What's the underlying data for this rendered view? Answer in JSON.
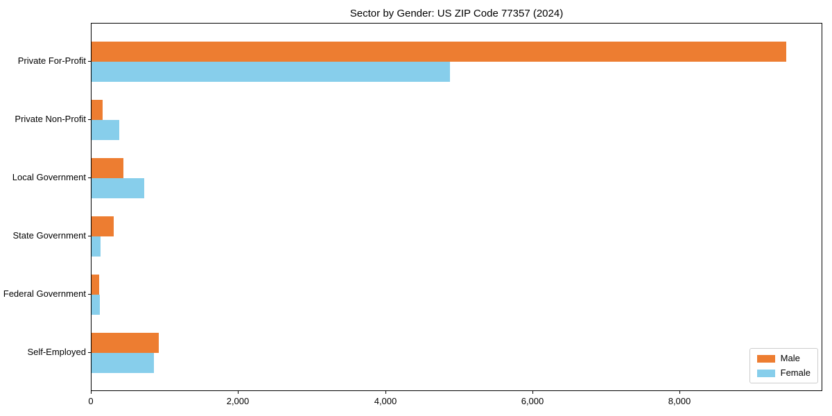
{
  "title": "Sector by Gender: US ZIP Code 77357 (2024)",
  "chart_data": {
    "type": "bar",
    "orientation": "horizontal",
    "title": "Sector by Gender: US ZIP Code 77357 (2024)",
    "categories": [
      "Private For-Profit",
      "Private Non-Profit",
      "Local Government",
      "State Government",
      "Federal Government",
      "Self-Employed"
    ],
    "series": [
      {
        "name": "Male",
        "color": "#ed7d31",
        "values": [
          9440,
          150,
          430,
          300,
          100,
          910
        ]
      },
      {
        "name": "Female",
        "color": "#87ceeb",
        "values": [
          4870,
          375,
          720,
          120,
          110,
          845
        ]
      }
    ],
    "xlabel": "",
    "ylabel": "",
    "xlim": [
      0,
      9917
    ],
    "xticks": [
      0,
      2000,
      4000,
      6000,
      8000
    ],
    "xtick_labels": [
      "0",
      "2,000",
      "4,000",
      "6,000",
      "8,000"
    ],
    "grid": false,
    "legend": {
      "position": "lower right",
      "entries": [
        "Male",
        "Female"
      ]
    }
  },
  "colors": {
    "male": "#ed7d31",
    "female": "#87ceeb",
    "spine": "#000000",
    "legend_border": "#cccccc",
    "background": "#ffffff"
  }
}
